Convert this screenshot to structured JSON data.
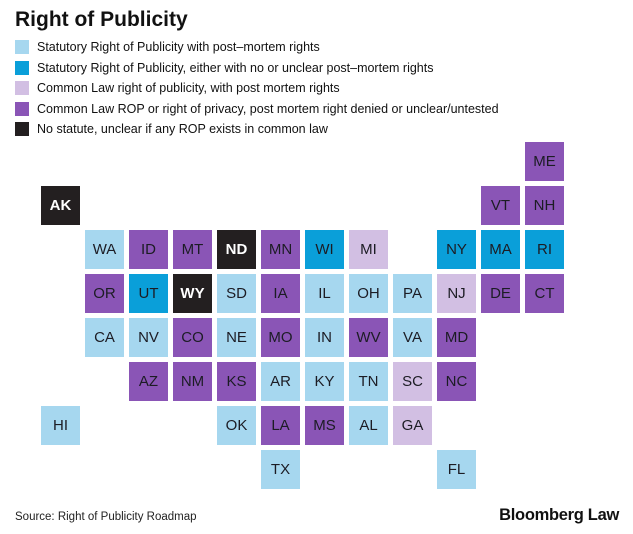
{
  "title": "Right of Publicity",
  "legend": [
    {
      "key": "cat1",
      "label": "Statutory Right of Publicity with post–mortem rights",
      "color": "#a6d7ef"
    },
    {
      "key": "cat2",
      "label": "Statutory Right of Publicity, either with no or unclear post–mortem rights",
      "color": "#0a9fd9"
    },
    {
      "key": "cat3",
      "label": "Common Law right of publicity, with post mortem rights",
      "color": "#d2bfe3"
    },
    {
      "key": "cat4",
      "label": "Common Law ROP or right of privacy, post mortem right denied or unclear/untested",
      "color": "#8a55b6"
    },
    {
      "key": "cat5",
      "label": "No statute, unclear if any ROP exists in common law",
      "color": "#231f20"
    }
  ],
  "states": [
    {
      "abbr": "ME",
      "row": 0,
      "col": 11,
      "cat": "cat4"
    },
    {
      "abbr": "AK",
      "row": 1,
      "col": 0,
      "cat": "cat5"
    },
    {
      "abbr": "VT",
      "row": 1,
      "col": 10,
      "cat": "cat4"
    },
    {
      "abbr": "NH",
      "row": 1,
      "col": 11,
      "cat": "cat4"
    },
    {
      "abbr": "WA",
      "row": 2,
      "col": 1,
      "cat": "cat1"
    },
    {
      "abbr": "ID",
      "row": 2,
      "col": 2,
      "cat": "cat4"
    },
    {
      "abbr": "MT",
      "row": 2,
      "col": 3,
      "cat": "cat4"
    },
    {
      "abbr": "ND",
      "row": 2,
      "col": 4,
      "cat": "cat5"
    },
    {
      "abbr": "MN",
      "row": 2,
      "col": 5,
      "cat": "cat4"
    },
    {
      "abbr": "WI",
      "row": 2,
      "col": 6,
      "cat": "cat2"
    },
    {
      "abbr": "MI",
      "row": 2,
      "col": 7,
      "cat": "cat3"
    },
    {
      "abbr": "NY",
      "row": 2,
      "col": 9,
      "cat": "cat2"
    },
    {
      "abbr": "MA",
      "row": 2,
      "col": 10,
      "cat": "cat2"
    },
    {
      "abbr": "RI",
      "row": 2,
      "col": 11,
      "cat": "cat2"
    },
    {
      "abbr": "OR",
      "row": 3,
      "col": 1,
      "cat": "cat4"
    },
    {
      "abbr": "UT",
      "row": 3,
      "col": 2,
      "cat": "cat2"
    },
    {
      "abbr": "WY",
      "row": 3,
      "col": 3,
      "cat": "cat5"
    },
    {
      "abbr": "SD",
      "row": 3,
      "col": 4,
      "cat": "cat1"
    },
    {
      "abbr": "IA",
      "row": 3,
      "col": 5,
      "cat": "cat4"
    },
    {
      "abbr": "IL",
      "row": 3,
      "col": 6,
      "cat": "cat1"
    },
    {
      "abbr": "OH",
      "row": 3,
      "col": 7,
      "cat": "cat1"
    },
    {
      "abbr": "PA",
      "row": 3,
      "col": 8,
      "cat": "cat1"
    },
    {
      "abbr": "NJ",
      "row": 3,
      "col": 9,
      "cat": "cat3"
    },
    {
      "abbr": "DE",
      "row": 3,
      "col": 10,
      "cat": "cat4"
    },
    {
      "abbr": "CT",
      "row": 3,
      "col": 11,
      "cat": "cat4"
    },
    {
      "abbr": "CA",
      "row": 4,
      "col": 1,
      "cat": "cat1"
    },
    {
      "abbr": "NV",
      "row": 4,
      "col": 2,
      "cat": "cat1"
    },
    {
      "abbr": "CO",
      "row": 4,
      "col": 3,
      "cat": "cat4"
    },
    {
      "abbr": "NE",
      "row": 4,
      "col": 4,
      "cat": "cat1"
    },
    {
      "abbr": "MO",
      "row": 4,
      "col": 5,
      "cat": "cat4"
    },
    {
      "abbr": "IN",
      "row": 4,
      "col": 6,
      "cat": "cat1"
    },
    {
      "abbr": "WV",
      "row": 4,
      "col": 7,
      "cat": "cat4"
    },
    {
      "abbr": "VA",
      "row": 4,
      "col": 8,
      "cat": "cat1"
    },
    {
      "abbr": "MD",
      "row": 4,
      "col": 9,
      "cat": "cat4"
    },
    {
      "abbr": "AZ",
      "row": 5,
      "col": 2,
      "cat": "cat4"
    },
    {
      "abbr": "NM",
      "row": 5,
      "col": 3,
      "cat": "cat4"
    },
    {
      "abbr": "KS",
      "row": 5,
      "col": 4,
      "cat": "cat4"
    },
    {
      "abbr": "AR",
      "row": 5,
      "col": 5,
      "cat": "cat1"
    },
    {
      "abbr": "KY",
      "row": 5,
      "col": 6,
      "cat": "cat1"
    },
    {
      "abbr": "TN",
      "row": 5,
      "col": 7,
      "cat": "cat1"
    },
    {
      "abbr": "SC",
      "row": 5,
      "col": 8,
      "cat": "cat3"
    },
    {
      "abbr": "NC",
      "row": 5,
      "col": 9,
      "cat": "cat4"
    },
    {
      "abbr": "HI",
      "row": 6,
      "col": 0,
      "cat": "cat1"
    },
    {
      "abbr": "OK",
      "row": 6,
      "col": 4,
      "cat": "cat1"
    },
    {
      "abbr": "LA",
      "row": 6,
      "col": 5,
      "cat": "cat4"
    },
    {
      "abbr": "MS",
      "row": 6,
      "col": 6,
      "cat": "cat4"
    },
    {
      "abbr": "AL",
      "row": 6,
      "col": 7,
      "cat": "cat1"
    },
    {
      "abbr": "GA",
      "row": 6,
      "col": 8,
      "cat": "cat3"
    },
    {
      "abbr": "TX",
      "row": 7,
      "col": 5,
      "cat": "cat1"
    },
    {
      "abbr": "FL",
      "row": 7,
      "col": 9,
      "cat": "cat1"
    }
  ],
  "source": "Source: Right of Publicity Roadmap",
  "logo": "Bloomberg Law"
}
